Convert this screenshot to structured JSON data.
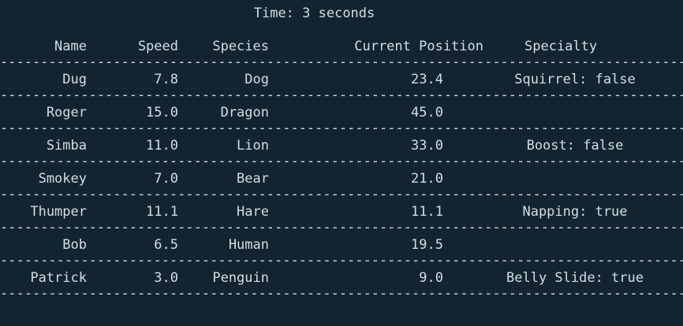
{
  "title": "Time: 3 seconds",
  "columns": {
    "name": "Name",
    "speed": "Speed",
    "species": "Species",
    "position": "Current Position",
    "specialty": "Specialty"
  },
  "rows": [
    {
      "name": "Dug",
      "speed": "7.8",
      "species": "Dog",
      "position": "23.4",
      "specialty": "Squirrel: false"
    },
    {
      "name": "Roger",
      "speed": "15.0",
      "species": "Dragon",
      "position": "45.0",
      "specialty": ""
    },
    {
      "name": "Simba",
      "speed": "11.0",
      "species": "Lion",
      "position": "33.0",
      "specialty": "Boost: false"
    },
    {
      "name": "Smokey",
      "speed": "7.0",
      "species": "Bear",
      "position": "21.0",
      "specialty": ""
    },
    {
      "name": "Thumper",
      "speed": "11.1",
      "species": "Hare",
      "position": "11.1",
      "specialty": "Napping: true"
    },
    {
      "name": "Bob",
      "speed": "6.5",
      "species": "Human",
      "position": "19.5",
      "specialty": ""
    },
    {
      "name": "Patrick",
      "speed": "3.0",
      "species": "Penguin",
      "position": "9.0",
      "specialty": "Belly Slide: true"
    }
  ],
  "divider": "--------------------------------------------------------------------------------------------------------------------------"
}
